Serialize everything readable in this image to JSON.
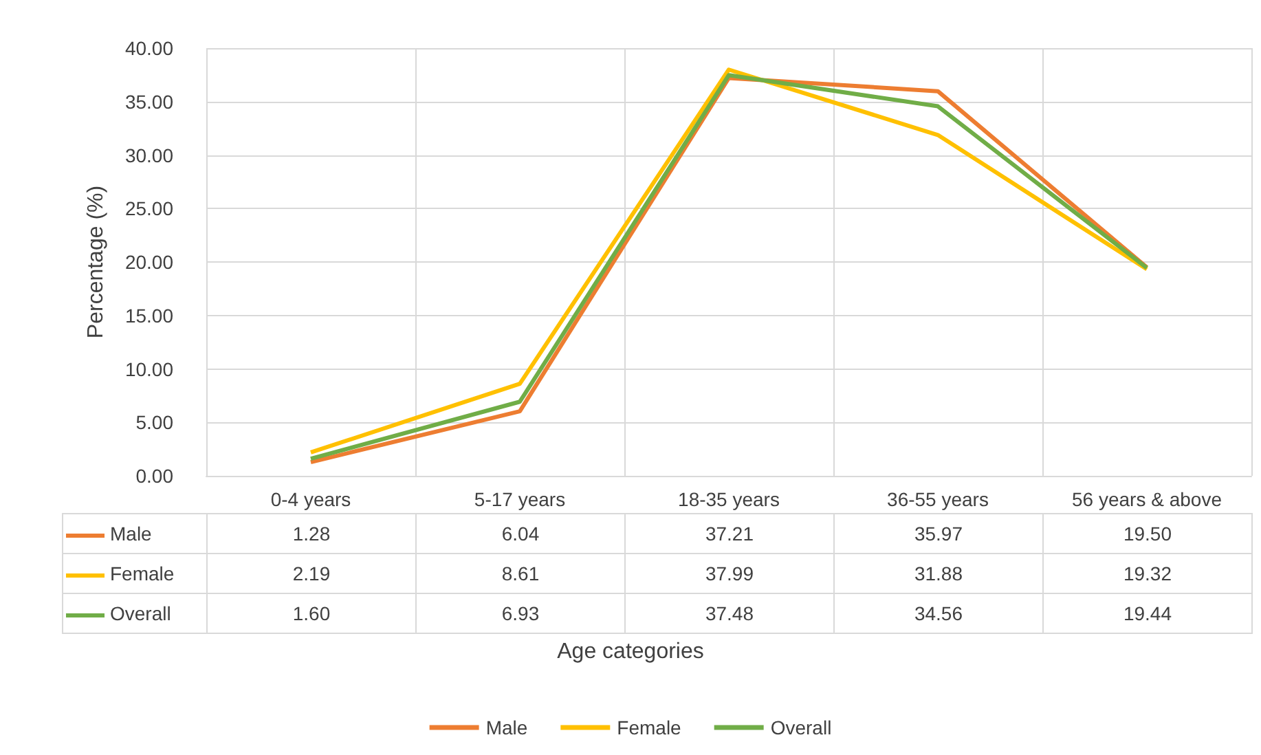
{
  "chart_data": {
    "type": "line",
    "annotations": [
      "Age categories"
    ],
    "ylabel": "Percentage (%)",
    "categories": [
      "0-4 years",
      "5-17 years",
      "18-35 years",
      "36-55 years",
      "56 years & above"
    ],
    "series": [
      {
        "name": "Male",
        "color": "#ed7d31",
        "values": [
          1.28,
          6.04,
          37.21,
          35.97,
          19.5
        ],
        "value_labels": [
          "1.28",
          "6.04",
          "37.21",
          "35.97",
          "19.50"
        ]
      },
      {
        "name": "Female",
        "color": "#ffc000",
        "values": [
          2.19,
          8.61,
          37.99,
          31.88,
          19.32
        ],
        "value_labels": [
          "2.19",
          "8.61",
          "37.99",
          "31.88",
          "19.32"
        ]
      },
      {
        "name": "Overall",
        "color": "#70ad47",
        "values": [
          1.6,
          6.93,
          37.48,
          34.56,
          19.44
        ],
        "value_labels": [
          "1.60",
          "6.93",
          "37.48",
          "34.56",
          "19.44"
        ]
      }
    ],
    "ylim": [
      0,
      40
    ],
    "yticks": [
      {
        "value": 0,
        "label": "0.00"
      },
      {
        "value": 5,
        "label": "5.00"
      },
      {
        "value": 10,
        "label": "10.00"
      },
      {
        "value": 15,
        "label": "15.00"
      },
      {
        "value": 20,
        "label": "20.00"
      },
      {
        "value": 25,
        "label": "25.00"
      },
      {
        "value": 30,
        "label": "30.00"
      },
      {
        "value": 35,
        "label": "35.00"
      },
      {
        "value": 40,
        "label": "40.00"
      }
    ],
    "grid": true,
    "legend": "bottom"
  }
}
